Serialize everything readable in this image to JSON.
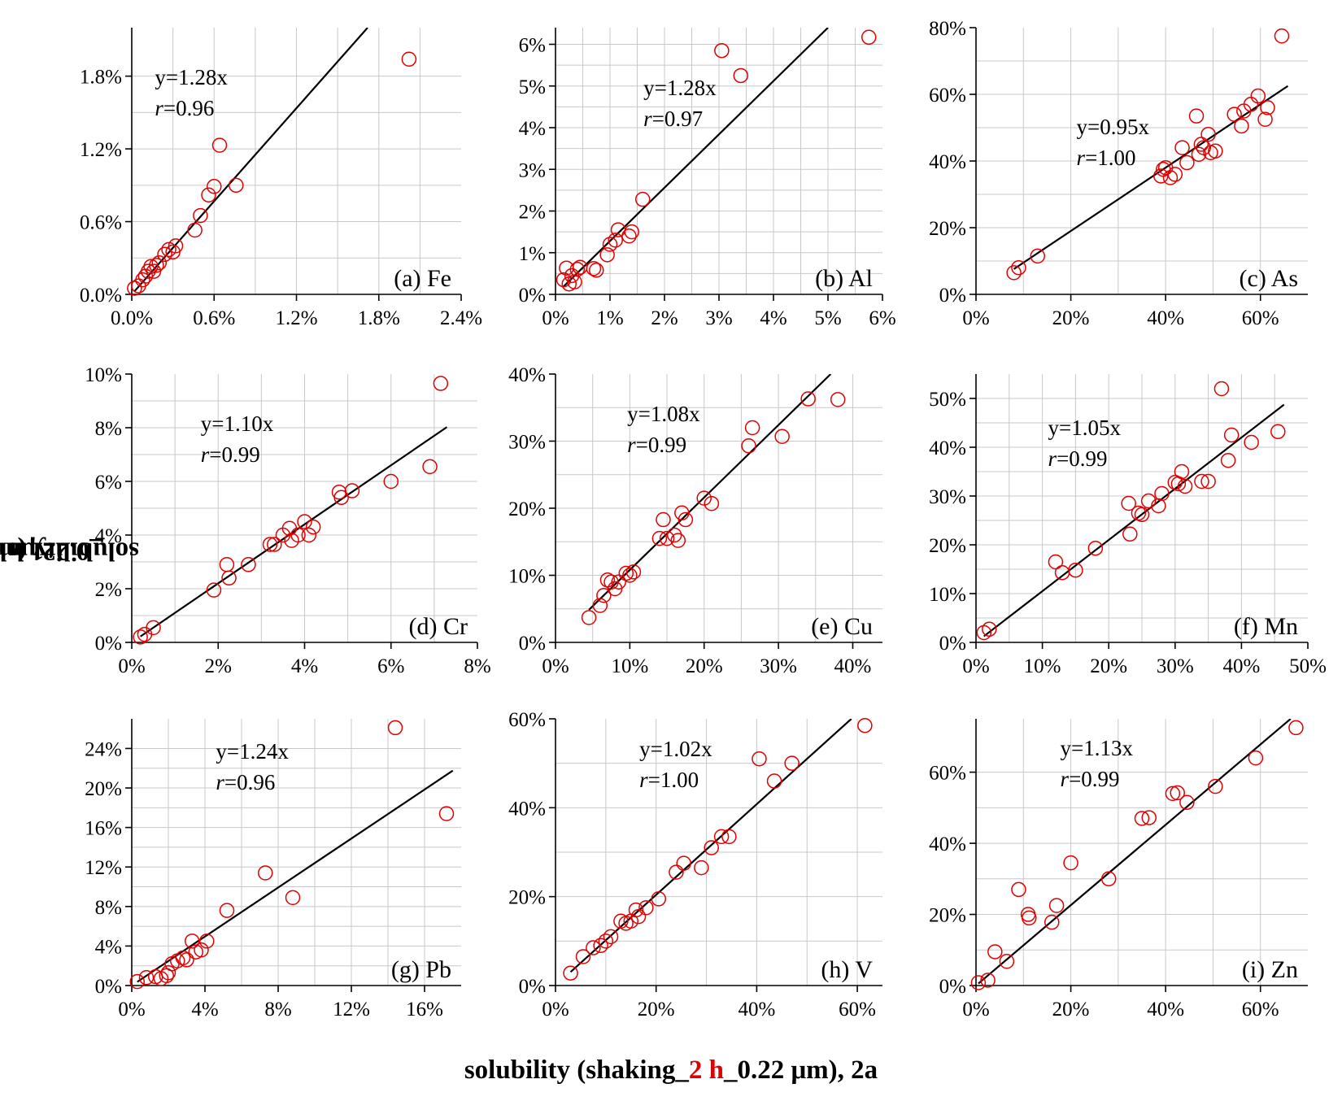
{
  "labels": {
    "y_pre": "solubility (shaking_",
    "y_red": "1 h",
    "y_post": "_0.22 μm), 2e",
    "x_pre": "solubility (shaking_",
    "x_red": "2 h",
    "x_post": "_0.22 μm), 2a"
  },
  "colors": {
    "marker": "#e00000",
    "fit_line": "#000000",
    "axis": "#000000",
    "grid": "#c8c8c8",
    "label_highlight": "#e00000"
  },
  "chart_data": [
    {
      "type": "scatter",
      "panel_label": "(a) Fe",
      "equation": "y=1.28x",
      "r_label": "r",
      "r_value": "=0.96",
      "slope": 1.28,
      "xlim": [
        0,
        0.024
      ],
      "ylim": [
        0,
        0.022
      ],
      "xticks": [
        0,
        0.006,
        0.012,
        0.018,
        0.024
      ],
      "xtick_labels": [
        "0.0%",
        "0.6%",
        "1.2%",
        "1.8%",
        "2.4%"
      ],
      "yticks": [
        0,
        0.006,
        0.012,
        0.018
      ],
      "ytick_labels": [
        "0.0%",
        "0.6%",
        "1.2%",
        "1.8%"
      ],
      "x": [
        0.0002,
        0.0005,
        0.0008,
        0.001,
        0.0012,
        0.0014,
        0.0016,
        0.0018,
        0.002,
        0.0024,
        0.0027,
        0.003,
        0.0032,
        0.0046,
        0.005,
        0.0056,
        0.006,
        0.0064,
        0.0076,
        0.0202
      ],
      "y": [
        0.0005,
        0.0007,
        0.0012,
        0.0015,
        0.0019,
        0.0023,
        0.0019,
        0.0024,
        0.0026,
        0.0033,
        0.0037,
        0.0035,
        0.004,
        0.0053,
        0.0065,
        0.0082,
        0.0089,
        0.0123,
        0.009,
        0.0194
      ]
    },
    {
      "type": "scatter",
      "panel_label": "(b) Al",
      "equation": "y=1.28x",
      "r_label": "r",
      "r_value": "=0.97",
      "slope": 1.28,
      "xlim": [
        0,
        0.06
      ],
      "ylim": [
        0,
        0.064
      ],
      "xticks": [
        0,
        0.01,
        0.02,
        0.03,
        0.04,
        0.05,
        0.06
      ],
      "xtick_labels": [
        "0%",
        "1%",
        "2%",
        "3%",
        "4%",
        "5%",
        "6%"
      ],
      "yticks": [
        0,
        0.01,
        0.02,
        0.03,
        0.04,
        0.05,
        0.06
      ],
      "ytick_labels": [
        "0%",
        "1%",
        "2%",
        "3%",
        "4%",
        "5%",
        "6%"
      ],
      "x": [
        0.0015,
        0.002,
        0.0025,
        0.003,
        0.0035,
        0.004,
        0.0045,
        0.007,
        0.0075,
        0.0095,
        0.01,
        0.011,
        0.0115,
        0.0135,
        0.014,
        0.016,
        0.0305,
        0.034,
        0.0575
      ],
      "y": [
        0.0035,
        0.0063,
        0.0025,
        0.0045,
        0.003,
        0.006,
        0.0065,
        0.0062,
        0.0058,
        0.0095,
        0.012,
        0.013,
        0.0155,
        0.014,
        0.015,
        0.0228,
        0.0585,
        0.0525,
        0.0617
      ]
    },
    {
      "type": "scatter",
      "panel_label": "(c) As",
      "equation": "y=0.95x",
      "r_label": "r",
      "r_value": "=1.00",
      "slope": 0.95,
      "xlim": [
        0,
        0.7
      ],
      "ylim": [
        0,
        0.8
      ],
      "xticks": [
        0,
        0.2,
        0.4,
        0.6
      ],
      "xtick_labels": [
        "0%",
        "20%",
        "40%",
        "60%"
      ],
      "yticks": [
        0,
        0.2,
        0.4,
        0.6,
        0.8
      ],
      "ytick_labels": [
        "0%",
        "20%",
        "40%",
        "60%",
        "80%"
      ],
      "x": [
        0.08,
        0.09,
        0.13,
        0.39,
        0.395,
        0.4,
        0.41,
        0.42,
        0.435,
        0.445,
        0.465,
        0.47,
        0.475,
        0.48,
        0.49,
        0.495,
        0.505,
        0.545,
        0.56,
        0.565,
        0.58,
        0.595,
        0.61,
        0.615,
        0.645
      ],
      "y": [
        0.065,
        0.08,
        0.115,
        0.355,
        0.375,
        0.38,
        0.35,
        0.36,
        0.44,
        0.395,
        0.535,
        0.42,
        0.45,
        0.44,
        0.48,
        0.425,
        0.43,
        0.54,
        0.505,
        0.55,
        0.57,
        0.595,
        0.525,
        0.56,
        0.775
      ]
    },
    {
      "type": "scatter",
      "panel_label": "(d) Cr",
      "equation": "y=1.10x",
      "r_label": "r",
      "r_value": "=0.99",
      "slope": 1.1,
      "xlim": [
        0,
        0.08
      ],
      "ylim": [
        0,
        0.1
      ],
      "xticks": [
        0,
        0.02,
        0.04,
        0.06,
        0.08
      ],
      "xtick_labels": [
        "0%",
        "2%",
        "4%",
        "6%",
        "8%"
      ],
      "yticks": [
        0,
        0.02,
        0.04,
        0.06,
        0.08,
        0.1
      ],
      "ytick_labels": [
        "0%",
        "2%",
        "4%",
        "6%",
        "8%",
        "10%"
      ],
      "x": [
        0.002,
        0.003,
        0.005,
        0.019,
        0.022,
        0.0225,
        0.027,
        0.032,
        0.033,
        0.035,
        0.0365,
        0.037,
        0.0385,
        0.04,
        0.041,
        0.042,
        0.048,
        0.0485,
        0.051,
        0.06,
        0.069,
        0.0715
      ],
      "y": [
        0.002,
        0.003,
        0.0055,
        0.0195,
        0.029,
        0.024,
        0.029,
        0.0365,
        0.0365,
        0.04,
        0.0425,
        0.038,
        0.04,
        0.045,
        0.04,
        0.043,
        0.056,
        0.054,
        0.0565,
        0.06,
        0.0655,
        0.0965
      ]
    },
    {
      "type": "scatter",
      "panel_label": "(e) Cu",
      "equation": "y=1.08x",
      "r_label": "r",
      "r_value": "=0.99",
      "slope": 1.08,
      "xlim": [
        0,
        0.44
      ],
      "ylim": [
        0,
        0.4
      ],
      "xticks": [
        0,
        0.1,
        0.2,
        0.3,
        0.4
      ],
      "xtick_labels": [
        "0%",
        "10%",
        "20%",
        "30%",
        "40%"
      ],
      "yticks": [
        0,
        0.1,
        0.2,
        0.3,
        0.4
      ],
      "ytick_labels": [
        "0%",
        "10%",
        "20%",
        "30%",
        "40%"
      ],
      "x": [
        0.045,
        0.06,
        0.065,
        0.07,
        0.075,
        0.08,
        0.085,
        0.095,
        0.1,
        0.105,
        0.14,
        0.145,
        0.15,
        0.16,
        0.165,
        0.17,
        0.175,
        0.2,
        0.21,
        0.26,
        0.265,
        0.305,
        0.34,
        0.38
      ],
      "y": [
        0.037,
        0.055,
        0.07,
        0.093,
        0.09,
        0.08,
        0.09,
        0.103,
        0.1,
        0.105,
        0.155,
        0.183,
        0.155,
        0.16,
        0.152,
        0.193,
        0.183,
        0.215,
        0.207,
        0.293,
        0.32,
        0.307,
        0.363,
        0.362
      ]
    },
    {
      "type": "scatter",
      "panel_label": "(f) Mn",
      "equation": "y=1.05x",
      "r_label": "r",
      "r_value": "=0.99",
      "slope": 1.05,
      "xlim": [
        0,
        0.5
      ],
      "ylim": [
        0,
        0.55
      ],
      "xticks": [
        0,
        0.1,
        0.2,
        0.3,
        0.4,
        0.5
      ],
      "xtick_labels": [
        "0%",
        "10%",
        "20%",
        "30%",
        "40%",
        "50%"
      ],
      "yticks": [
        0,
        0.1,
        0.2,
        0.3,
        0.4,
        0.5
      ],
      "ytick_labels": [
        "0%",
        "10%",
        "20%",
        "30%",
        "40%",
        "50%"
      ],
      "x": [
        0.012,
        0.02,
        0.12,
        0.13,
        0.15,
        0.18,
        0.23,
        0.232,
        0.245,
        0.25,
        0.26,
        0.275,
        0.28,
        0.3,
        0.305,
        0.31,
        0.315,
        0.34,
        0.35,
        0.37,
        0.38,
        0.385,
        0.415,
        0.455
      ],
      "y": [
        0.02,
        0.027,
        0.165,
        0.143,
        0.148,
        0.193,
        0.285,
        0.222,
        0.265,
        0.262,
        0.29,
        0.28,
        0.305,
        0.328,
        0.325,
        0.35,
        0.32,
        0.33,
        0.33,
        0.52,
        0.373,
        0.425,
        0.41,
        0.432
      ]
    },
    {
      "type": "scatter",
      "panel_label": "(g) Pb",
      "equation": "y=1.24x",
      "r_label": "r",
      "r_value": "=0.96",
      "slope": 1.24,
      "xlim": [
        0,
        0.18
      ],
      "ylim": [
        0,
        0.27
      ],
      "xticks": [
        0,
        0.04,
        0.08,
        0.12,
        0.16
      ],
      "xtick_labels": [
        "0%",
        "4%",
        "8%",
        "12%",
        "16%"
      ],
      "yticks": [
        0,
        0.04,
        0.08,
        0.12,
        0.16,
        0.2,
        0.24
      ],
      "ytick_labels": [
        "0%",
        "4%",
        "8%",
        "12%",
        "16%",
        "20%",
        "24%"
      ],
      "x": [
        0.003,
        0.008,
        0.013,
        0.016,
        0.019,
        0.02,
        0.022,
        0.025,
        0.028,
        0.03,
        0.033,
        0.035,
        0.038,
        0.041,
        0.052,
        0.073,
        0.088,
        0.144,
        0.172
      ],
      "y": [
        0.004,
        0.008,
        0.009,
        0.007,
        0.01,
        0.013,
        0.022,
        0.025,
        0.028,
        0.026,
        0.045,
        0.034,
        0.036,
        0.045,
        0.076,
        0.114,
        0.089,
        0.261,
        0.174
      ]
    },
    {
      "type": "scatter",
      "panel_label": "(h) V",
      "equation": "y=1.02x",
      "r_label": "r",
      "r_value": "=1.00",
      "slope": 1.02,
      "xlim": [
        0,
        0.65
      ],
      "ylim": [
        0,
        0.6
      ],
      "xticks": [
        0,
        0.2,
        0.4,
        0.6
      ],
      "xtick_labels": [
        "0%",
        "20%",
        "40%",
        "60%"
      ],
      "yticks": [
        0,
        0.2,
        0.4,
        0.6
      ],
      "ytick_labels": [
        "0%",
        "20%",
        "40%",
        "60%"
      ],
      "x": [
        0.03,
        0.055,
        0.075,
        0.09,
        0.1,
        0.11,
        0.13,
        0.14,
        0.15,
        0.16,
        0.165,
        0.18,
        0.205,
        0.24,
        0.255,
        0.29,
        0.31,
        0.33,
        0.345,
        0.405,
        0.435,
        0.47,
        0.615
      ],
      "y": [
        0.028,
        0.065,
        0.085,
        0.09,
        0.1,
        0.11,
        0.145,
        0.14,
        0.145,
        0.17,
        0.155,
        0.175,
        0.195,
        0.255,
        0.275,
        0.265,
        0.31,
        0.335,
        0.335,
        0.51,
        0.46,
        0.5,
        0.585
      ]
    },
    {
      "type": "scatter",
      "panel_label": "(i) Zn",
      "equation": "y=1.13x",
      "r_label": "r",
      "r_value": "=0.99",
      "slope": 1.13,
      "xlim": [
        0,
        0.7
      ],
      "ylim": [
        0,
        0.75
      ],
      "xticks": [
        0,
        0.2,
        0.4,
        0.6
      ],
      "xtick_labels": [
        "0%",
        "20%",
        "40%",
        "60%"
      ],
      "yticks": [
        0,
        0.2,
        0.4,
        0.6
      ],
      "ytick_labels": [
        "0%",
        "20%",
        "40%",
        "60%"
      ],
      "x": [
        0.005,
        0.025,
        0.04,
        0.065,
        0.09,
        0.11,
        0.112,
        0.16,
        0.17,
        0.2,
        0.28,
        0.35,
        0.365,
        0.415,
        0.425,
        0.445,
        0.505,
        0.59,
        0.675
      ],
      "y": [
        0.008,
        0.015,
        0.095,
        0.068,
        0.27,
        0.2,
        0.19,
        0.178,
        0.225,
        0.345,
        0.3,
        0.47,
        0.472,
        0.54,
        0.542,
        0.515,
        0.56,
        0.64,
        0.725
      ]
    }
  ]
}
